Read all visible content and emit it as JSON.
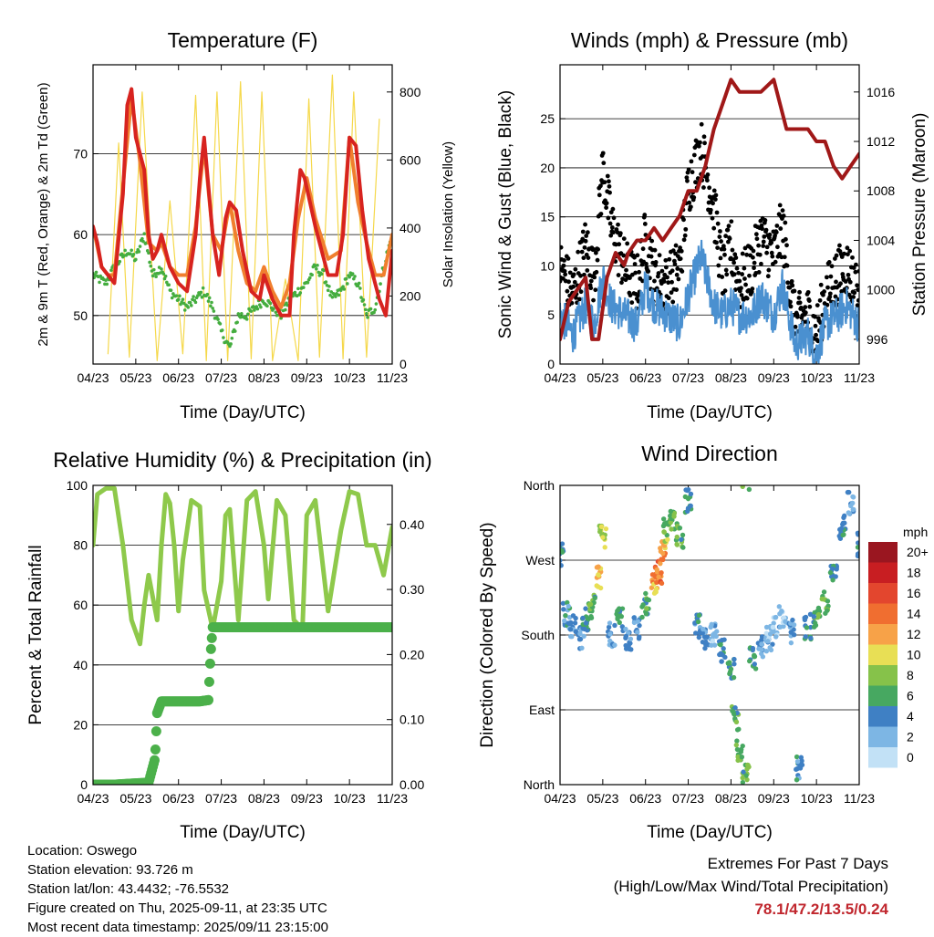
{
  "chart_data": [
    {
      "type": "line",
      "title": "Temperature (F)",
      "xlabel": "Time (Day/UTC)",
      "ylabel": "2m & 9m T (Red, Orange) & 2m Td (Green)",
      "ylabel_right": "Solar Insolation (Yellow)",
      "xticks": [
        "04/23",
        "05/23",
        "06/23",
        "07/23",
        "08/23",
        "09/23",
        "10/23",
        "11/23"
      ],
      "yticks": [
        50,
        60,
        70
      ],
      "yticks_right": [
        0,
        200,
        400,
        600,
        800
      ],
      "ylim": [
        44,
        81
      ],
      "ylim_right": [
        0,
        880
      ],
      "grid": true,
      "colors": {
        "t2m": "#d7231f",
        "t9m": "#f07f2e",
        "td": "#44ad3f",
        "solar": "#f5d84a"
      },
      "series": [
        {
          "x": [
            0,
            0.1,
            0.2,
            0.35,
            0.5,
            0.7,
            0.8,
            0.9,
            1.0,
            1.1,
            1.2,
            1.3,
            1.4,
            1.5,
            1.6,
            1.8,
            2.0,
            2.2,
            2.4,
            2.5,
            2.6,
            2.8,
            2.95,
            3.1,
            3.2,
            3.35,
            3.5,
            3.7,
            3.9,
            4.0,
            4.2,
            4.4,
            4.6,
            4.7,
            4.85,
            4.95,
            5.2,
            5.5,
            5.7,
            5.85,
            6.0,
            6.15,
            6.3,
            6.45,
            6.7,
            6.85,
            7.0
          ],
          "values": [
            61,
            59,
            56,
            55,
            54,
            65,
            76,
            78,
            72,
            70,
            68,
            60,
            57,
            58,
            60,
            56,
            54,
            53,
            60,
            67,
            72,
            60,
            55,
            62,
            64,
            63,
            58,
            53,
            52,
            55,
            52,
            50,
            50,
            60,
            68,
            67,
            61,
            55,
            55,
            60,
            72,
            71,
            63,
            57,
            52,
            50,
            58
          ]
        },
        {
          "x": [
            0,
            0.2,
            0.35,
            0.5,
            0.7,
            0.9,
            1.1,
            1.3,
            1.5,
            1.6,
            1.8,
            2.0,
            2.2,
            2.4,
            2.6,
            2.8,
            3.0,
            3.2,
            3.4,
            3.6,
            3.8,
            4.0,
            4.2,
            4.4,
            4.6,
            4.8,
            5.0,
            5.2,
            5.5,
            5.8,
            6.0,
            6.2,
            6.4,
            6.6,
            6.8,
            7.0
          ],
          "values": [
            61,
            56,
            55,
            55,
            66,
            77,
            69,
            59,
            58,
            59,
            56,
            55,
            55,
            61,
            71,
            60,
            58,
            64,
            58,
            54,
            53,
            56,
            53,
            51,
            54,
            62,
            67,
            62,
            57,
            58,
            72,
            64,
            59,
            55,
            55,
            60
          ]
        },
        {
          "x": [
            0,
            0.3,
            0.5,
            0.8,
            1.0,
            1.2,
            1.4,
            1.6,
            1.8,
            2.0,
            2.2,
            2.4,
            2.6,
            2.8,
            3.0,
            3.2,
            3.4,
            3.6,
            3.8,
            4.0,
            4.2,
            4.4,
            4.6,
            4.8,
            5.0,
            5.2,
            5.4,
            5.6,
            5.8,
            6.0,
            6.2,
            6.4,
            6.6,
            6.8,
            7.0
          ],
          "values": [
            55,
            54,
            56,
            58,
            57,
            60,
            55,
            56,
            53,
            52,
            51,
            52,
            53,
            51,
            48,
            46,
            50,
            50,
            51,
            52,
            51,
            50,
            52,
            53,
            54,
            56,
            55,
            52,
            53,
            55,
            54,
            50,
            51,
            56,
            60
          ]
        },
        {
          "x": [
            0.35,
            0.6,
            0.85,
            1.15,
            1.5,
            1.8,
            2.1,
            2.4,
            2.65,
            2.9,
            3.15,
            3.45,
            3.7,
            3.95,
            4.2,
            4.5,
            4.8,
            5.05,
            5.3,
            5.6,
            5.85,
            6.1,
            6.4,
            6.7
          ],
          "values": [
            30,
            650,
            20,
            800,
            10,
            480,
            30,
            790,
            10,
            800,
            10,
            830,
            15,
            800,
            10,
            250,
            10,
            780,
            20,
            850,
            15,
            800,
            20,
            720
          ]
        }
      ]
    },
    {
      "type": "scatter",
      "title": "Winds (mph) & Pressure (mb)",
      "xlabel": "Time (Day/UTC)",
      "ylabel": "Sonic Wind & Gust (Blue, Black)",
      "ylabel_right": "Station Pressure (Maroon)",
      "xticks": [
        "04/23",
        "05/23",
        "06/23",
        "07/23",
        "08/23",
        "09/23",
        "10/23",
        "11/23"
      ],
      "yticks": [
        0,
        5,
        10,
        15,
        20,
        25
      ],
      "yticks_right": [
        996,
        1000,
        1004,
        1008,
        1012,
        1016
      ],
      "ylim": [
        0,
        30.5
      ],
      "ylim_right": [
        994,
        1018.2
      ],
      "grid": true,
      "colors": {
        "wind": "#4a90d0",
        "gust": "#000000",
        "pressure": "#a01818"
      },
      "series": [
        {
          "x": [
            0,
            0.3,
            0.6,
            0.8,
            1.0,
            1.2,
            1.5,
            1.8,
            2.0,
            2.2,
            2.5,
            2.8,
            3.0,
            3.3,
            3.6,
            3.8,
            4.0,
            4.2,
            4.5,
            4.7,
            5.0,
            5.2,
            5.5,
            5.8,
            6.0,
            6.2,
            6.5,
            6.7,
            7.0
          ],
          "values": [
            5,
            3,
            6,
            4,
            9,
            6,
            5,
            4,
            8,
            6,
            5,
            4,
            7,
            11,
            6,
            5,
            6,
            5,
            5,
            7,
            5,
            8,
            2,
            3,
            1,
            4,
            5,
            6,
            4
          ]
        },
        {
          "x": [
            0,
            0.3,
            0.6,
            0.8,
            1.0,
            1.2,
            1.5,
            1.8,
            2.0,
            2.2,
            2.5,
            2.8,
            3.0,
            3.3,
            3.6,
            3.8,
            4.0,
            4.2,
            4.5,
            4.7,
            5.0,
            5.2,
            5.5,
            5.8,
            6.0,
            6.2,
            6.5,
            6.7,
            7.0
          ],
          "values": [
            10,
            7,
            12,
            9,
            20,
            14,
            10,
            8,
            13,
            9,
            8,
            10,
            18,
            22,
            16,
            9,
            12,
            8,
            10,
            13,
            11,
            14,
            4,
            5,
            3,
            7,
            9,
            10,
            7
          ]
        },
        {
          "x": [
            0,
            0.2,
            0.4,
            0.6,
            0.75,
            0.9,
            1.1,
            1.3,
            1.5,
            1.6,
            1.8,
            2.0,
            2.2,
            2.4,
            2.6,
            2.8,
            3.0,
            3.2,
            3.4,
            3.6,
            3.8,
            4.0,
            4.2,
            4.5,
            4.7,
            5.0,
            5.3,
            5.5,
            5.8,
            6.0,
            6.2,
            6.4,
            6.6,
            6.8,
            7.0
          ],
          "values": [
            996,
            999,
            1000,
            1001,
            996,
            996,
            1001,
            1003,
            1002,
            1003,
            1004,
            1004,
            1005,
            1004,
            1005,
            1006,
            1008,
            1008,
            1010,
            1013,
            1015,
            1017,
            1016,
            1016,
            1016,
            1017,
            1013,
            1013,
            1013,
            1012,
            1012,
            1010,
            1009,
            1010,
            1011
          ]
        }
      ]
    },
    {
      "type": "line",
      "title": "Relative Humidity (%) & Precipitation (in)",
      "xlabel": "Time (Day/UTC)",
      "ylabel": "Percent & Total Rainfall",
      "xticks": [
        "04/23",
        "05/23",
        "06/23",
        "07/23",
        "08/23",
        "09/23",
        "10/23",
        "11/23"
      ],
      "yticks": [
        0,
        20,
        40,
        60,
        80,
        100
      ],
      "yticks_right": [
        "0.00",
        "0.10",
        "0.20",
        "0.30",
        "0.40"
      ],
      "ylim": [
        0,
        100
      ],
      "ylim_right": [
        0,
        0.46
      ],
      "grid": true,
      "colors": {
        "rh": "#8ec94b",
        "precip": "#4bb04a"
      },
      "series": [
        {
          "x": [
            0,
            0.1,
            0.3,
            0.5,
            0.7,
            0.9,
            1.1,
            1.2,
            1.3,
            1.5,
            1.6,
            1.7,
            1.8,
            1.9,
            2.0,
            2.1,
            2.3,
            2.5,
            2.6,
            2.8,
            3.0,
            3.1,
            3.2,
            3.4,
            3.6,
            3.8,
            4.0,
            4.1,
            4.3,
            4.5,
            4.7,
            4.9,
            5.0,
            5.2,
            5.5,
            5.8,
            6.0,
            6.2,
            6.4,
            6.6,
            6.8,
            7.0
          ],
          "values": [
            80,
            97,
            99,
            99,
            80,
            55,
            47,
            60,
            70,
            55,
            80,
            97,
            94,
            80,
            58,
            75,
            95,
            93,
            65,
            52,
            68,
            90,
            92,
            55,
            95,
            98,
            80,
            62,
            95,
            90,
            55,
            52,
            90,
            95,
            58,
            85,
            98,
            97,
            80,
            80,
            70,
            86
          ]
        },
        {
          "x": [
            0,
            0.5,
            1.0,
            1.3,
            1.45,
            1.5,
            1.6,
            2.0,
            2.5,
            2.7,
            2.75,
            2.8,
            3.0,
            4.0,
            5.0,
            6.0,
            7.0
          ],
          "values": [
            0,
            0,
            0.002,
            0.003,
            0.04,
            0.11,
            0.128,
            0.128,
            0.128,
            0.13,
            0.2,
            0.242,
            0.242,
            0.242,
            0.242,
            0.242,
            0.242
          ]
        }
      ]
    },
    {
      "type": "scatter",
      "title": "Wind Direction",
      "xlabel": "Time (Day/UTC)",
      "ylabel": "Direction (Colored By Speed)",
      "xticks": [
        "04/23",
        "05/23",
        "06/23",
        "07/23",
        "08/23",
        "09/23",
        "10/23",
        "11/23"
      ],
      "yticks": [
        "North",
        "East",
        "South",
        "West",
        "North"
      ],
      "ylim": [
        0,
        360
      ],
      "grid": true,
      "colorbar_title": "mph",
      "colorbar_labels": [
        "20+",
        "18",
        "16",
        "14",
        "12",
        "10",
        "8",
        "6",
        "4",
        "2",
        "0"
      ],
      "colorbar_colors": [
        "#9a1620",
        "#c81e22",
        "#e3462e",
        "#f06e30",
        "#f7a248",
        "#e8df55",
        "#86c24a",
        "#47a861",
        "#3f80c4",
        "#7db6e4",
        "#c2e1f6"
      ],
      "x": [
        0,
        0.15,
        0.3,
        0.5,
        0.6,
        0.75,
        0.9,
        1.0,
        1.2,
        1.4,
        1.6,
        1.8,
        2.0,
        2.2,
        2.3,
        2.4,
        2.5,
        2.6,
        2.8,
        3.0,
        3.2,
        3.4,
        3.6,
        3.8,
        4.0,
        4.1,
        4.2,
        4.35,
        4.5,
        4.7,
        4.9,
        5.0,
        5.2,
        5.4,
        5.6,
        5.8,
        6.0,
        6.2,
        6.4,
        6.6,
        6.8,
        7.0
      ],
      "values": [
        275,
        205,
        190,
        175,
        200,
        215,
        250,
        300,
        180,
        200,
        175,
        190,
        215,
        245,
        255,
        280,
        305,
        320,
        300,
        340,
        190,
        175,
        180,
        160,
        140,
        80,
        40,
        10,
        150,
        165,
        175,
        190,
        200,
        185,
        20,
        190,
        200,
        220,
        260,
        310,
        340,
        290
      ],
      "speeds": [
        5,
        4,
        3,
        4,
        5,
        6,
        11,
        9,
        3,
        5,
        4,
        3,
        6,
        12,
        14,
        12,
        8,
        7,
        6,
        5,
        4,
        3,
        2,
        4,
        5,
        6,
        7,
        6,
        5,
        3,
        2,
        1,
        2,
        3,
        4,
        5,
        6,
        7,
        5,
        4,
        3,
        4
      ]
    }
  ],
  "info": {
    "location": "Location: Oswego",
    "elevation": "Station elevation: 93.726 m",
    "latlon": "Station lat/lon: 43.4432; -76.5532",
    "created": "Figure created on Thu, 2025-09-11, at 23:35 UTC",
    "recent": "Most recent data timestamp: 2025/09/11 23:15:00"
  },
  "extremes": {
    "line1": "Extremes For Past 7 Days",
    "line2": "(High/Low/Max Wind/Total Precipitation)",
    "values": "78.1/47.2/13.5/0.24"
  }
}
